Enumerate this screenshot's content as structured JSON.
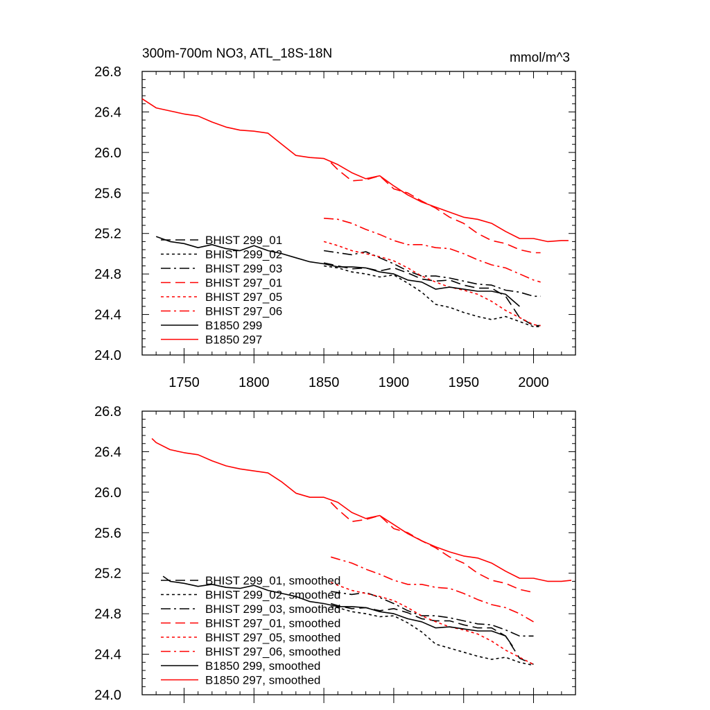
{
  "chart_data": [
    {
      "type": "line",
      "title": "300m-700m NO3, ATL_18S-18N",
      "units": "mmol/m^3",
      "xlabel": "",
      "ylabel": "",
      "xlim": [
        1720,
        2030
      ],
      "ylim": [
        24.0,
        26.8
      ],
      "xticks": [
        1750,
        1800,
        1850,
        1900,
        1950,
        2000
      ],
      "yticks": [
        24.0,
        24.4,
        24.8,
        25.2,
        25.6,
        26.0,
        26.4,
        26.8
      ],
      "ytick_labels": [
        "24.0",
        "24.4",
        "24.8",
        "25.2",
        "25.6",
        "26.0",
        "26.4",
        "26.8"
      ],
      "legend_position": "lower-left",
      "series": [
        {
          "name": "BHIST 299_01",
          "color": "#000000",
          "dash": "dashed",
          "x": [
            1850,
            1860,
            1870,
            1880,
            1890,
            1900,
            1910,
            1920,
            1930,
            1940,
            1950,
            1960,
            1970,
            1980,
            1990,
            2000,
            2005
          ],
          "y": [
            24.91,
            24.88,
            24.85,
            24.86,
            24.83,
            24.86,
            24.81,
            24.75,
            24.73,
            24.74,
            24.69,
            24.66,
            24.66,
            24.58,
            24.37,
            24.29,
            24.29
          ]
        },
        {
          "name": "BHIST 299_02",
          "color": "#000000",
          "dash": "dotted",
          "x": [
            1850,
            1860,
            1870,
            1880,
            1890,
            1900,
            1910,
            1920,
            1930,
            1940,
            1950,
            1960,
            1970,
            1980,
            1990,
            2000,
            2005
          ],
          "y": [
            24.88,
            24.86,
            24.82,
            24.8,
            24.77,
            24.79,
            24.71,
            24.62,
            24.5,
            24.47,
            24.42,
            24.38,
            24.35,
            24.38,
            24.33,
            24.28,
            24.28
          ]
        },
        {
          "name": "BHIST 299_03",
          "color": "#000000",
          "dash": "dashdot",
          "x": [
            1850,
            1860,
            1870,
            1880,
            1890,
            1900,
            1910,
            1920,
            1930,
            1940,
            1950,
            1960,
            1970,
            1980,
            1990,
            2000,
            2005
          ],
          "y": [
            25.03,
            25.01,
            24.99,
            25.02,
            24.96,
            24.9,
            24.83,
            24.78,
            24.78,
            24.76,
            24.73,
            24.7,
            24.69,
            24.64,
            24.62,
            24.58,
            24.58
          ]
        },
        {
          "name": "BHIST 297_01",
          "color": "#ff0000",
          "dash": "dashed",
          "x": [
            1855,
            1860,
            1870,
            1880,
            1890,
            1900,
            1910,
            1920,
            1930,
            1940,
            1950,
            1960,
            1970,
            1980,
            1990,
            2000,
            2005
          ],
          "y": [
            25.9,
            25.83,
            25.72,
            25.73,
            25.77,
            25.64,
            25.6,
            25.52,
            25.45,
            25.36,
            25.3,
            25.2,
            25.13,
            25.1,
            25.04,
            25.01,
            25.01
          ]
        },
        {
          "name": "BHIST 297_05",
          "color": "#ff0000",
          "dash": "dotted",
          "x": [
            1850,
            1860,
            1870,
            1880,
            1890,
            1900,
            1910,
            1920,
            1930,
            1940,
            1950,
            1960,
            1970,
            1980,
            1990,
            2000,
            2005
          ],
          "y": [
            25.12,
            25.08,
            25.03,
            25.0,
            24.97,
            24.93,
            24.86,
            24.78,
            24.72,
            24.67,
            24.64,
            24.6,
            24.53,
            24.44,
            24.37,
            24.3,
            24.29
          ]
        },
        {
          "name": "BHIST 297_06",
          "color": "#ff0000",
          "dash": "dashdot",
          "x": [
            1850,
            1860,
            1870,
            1880,
            1890,
            1900,
            1910,
            1920,
            1930,
            1940,
            1950,
            1960,
            1970,
            1980,
            1990,
            2000,
            2005
          ],
          "y": [
            25.35,
            25.34,
            25.3,
            25.24,
            25.19,
            25.13,
            25.09,
            25.09,
            25.06,
            25.05,
            25.0,
            24.94,
            24.89,
            24.86,
            24.8,
            24.74,
            24.72
          ]
        },
        {
          "name": "B1850 299",
          "color": "#000000",
          "dash": "solid",
          "x": [
            1730,
            1740,
            1750,
            1760,
            1770,
            1780,
            1790,
            1800,
            1810,
            1820,
            1830,
            1840,
            1850,
            1860,
            1870,
            1880,
            1890,
            1900,
            1910,
            1920,
            1930,
            1940,
            1950,
            1960,
            1970,
            1980,
            1990
          ],
          "y": [
            25.17,
            25.12,
            25.1,
            25.06,
            25.09,
            25.05,
            25.03,
            25.08,
            25.03,
            25.0,
            24.96,
            24.92,
            24.9,
            24.87,
            24.87,
            24.86,
            24.82,
            24.8,
            24.74,
            24.72,
            24.65,
            24.67,
            24.65,
            24.63,
            24.63,
            24.6,
            24.48
          ]
        },
        {
          "name": "B1850 297",
          "color": "#ff0000",
          "dash": "solid",
          "x": [
            1720,
            1730,
            1740,
            1750,
            1760,
            1770,
            1780,
            1790,
            1800,
            1810,
            1820,
            1830,
            1840,
            1850,
            1860,
            1870,
            1880,
            1890,
            1900,
            1910,
            1920,
            1930,
            1940,
            1950,
            1960,
            1970,
            1980,
            1990,
            2000,
            2010,
            2020,
            2025
          ],
          "y": [
            26.53,
            26.44,
            26.41,
            26.38,
            26.36,
            26.3,
            26.25,
            26.22,
            26.21,
            26.19,
            26.08,
            25.97,
            25.95,
            25.94,
            25.88,
            25.8,
            25.74,
            25.77,
            25.67,
            25.58,
            25.51,
            25.46,
            25.41,
            25.36,
            25.34,
            25.3,
            25.22,
            25.15,
            25.15,
            25.12,
            25.13,
            25.13
          ]
        }
      ]
    },
    {
      "type": "line",
      "title": "",
      "xlabel": "",
      "ylabel": "",
      "xlim": [
        1720,
        2030
      ],
      "ylim": [
        24.0,
        26.8
      ],
      "xticks": [
        1750,
        1800,
        1850,
        1900,
        1950,
        2000
      ],
      "yticks": [
        24.0,
        24.4,
        24.8,
        25.2,
        25.6,
        26.0,
        26.4,
        26.8
      ],
      "ytick_labels": [
        "24.0",
        "24.4",
        "24.8",
        "25.2",
        "25.6",
        "26.0",
        "26.4",
        "26.8"
      ],
      "legend_position": "lower-left",
      "series": [
        {
          "name": "BHIST 299_01, smoothed",
          "color": "#000000",
          "dash": "dashed",
          "x": [
            1855,
            1860,
            1870,
            1880,
            1890,
            1900,
            1910,
            1920,
            1930,
            1940,
            1950,
            1960,
            1970,
            1980,
            1990,
            2000
          ],
          "y": [
            24.9,
            24.88,
            24.85,
            24.86,
            24.83,
            24.85,
            24.81,
            24.75,
            24.73,
            24.73,
            24.69,
            24.66,
            24.66,
            24.58,
            24.36,
            24.3
          ]
        },
        {
          "name": "BHIST 299_02, smoothed",
          "color": "#000000",
          "dash": "dotted",
          "x": [
            1855,
            1860,
            1870,
            1880,
            1890,
            1900,
            1910,
            1920,
            1930,
            1940,
            1950,
            1960,
            1970,
            1980,
            1990,
            2000
          ],
          "y": [
            24.87,
            24.86,
            24.82,
            24.8,
            24.77,
            24.78,
            24.71,
            24.62,
            24.5,
            24.46,
            24.42,
            24.38,
            24.35,
            24.37,
            24.32,
            24.29
          ]
        },
        {
          "name": "BHIST 299_03, smoothed",
          "color": "#000000",
          "dash": "dashdot",
          "x": [
            1855,
            1860,
            1870,
            1880,
            1890,
            1900,
            1910,
            1920,
            1930,
            1940,
            1950,
            1960,
            1970,
            1980,
            1990,
            2000
          ],
          "y": [
            25.02,
            25.01,
            24.99,
            25.01,
            24.96,
            24.9,
            24.83,
            24.78,
            24.78,
            24.76,
            24.73,
            24.7,
            24.69,
            24.64,
            24.58,
            24.58
          ]
        },
        {
          "name": "BHIST 297_01, smoothed",
          "color": "#ff0000",
          "dash": "dashed",
          "x": [
            1855,
            1860,
            1870,
            1880,
            1890,
            1900,
            1910,
            1920,
            1930,
            1940,
            1950,
            1960,
            1970,
            1980,
            1990,
            2000
          ],
          "y": [
            25.9,
            25.83,
            25.71,
            25.73,
            25.77,
            25.64,
            25.6,
            25.52,
            25.45,
            25.36,
            25.3,
            25.2,
            25.13,
            25.1,
            25.04,
            25.01
          ]
        },
        {
          "name": "BHIST 297_05, smoothed",
          "color": "#ff0000",
          "dash": "dotted",
          "x": [
            1855,
            1860,
            1870,
            1880,
            1890,
            1900,
            1910,
            1920,
            1930,
            1940,
            1950,
            1960,
            1970,
            1980,
            1990,
            2000
          ],
          "y": [
            25.11,
            25.08,
            25.03,
            25.0,
            24.97,
            24.93,
            24.86,
            24.78,
            24.72,
            24.67,
            24.64,
            24.6,
            24.53,
            24.44,
            24.37,
            24.3
          ]
        },
        {
          "name": "BHIST 297_06, smoothed",
          "color": "#ff0000",
          "dash": "dashdot",
          "x": [
            1855,
            1860,
            1870,
            1880,
            1890,
            1900,
            1910,
            1920,
            1930,
            1940,
            1950,
            1960,
            1970,
            1980,
            1990,
            2000
          ],
          "y": [
            25.36,
            25.34,
            25.3,
            25.24,
            25.19,
            25.13,
            25.09,
            25.09,
            25.06,
            25.05,
            25.0,
            24.94,
            24.89,
            24.86,
            24.8,
            24.72
          ]
        },
        {
          "name": "B1850 299, smoothed",
          "color": "#000000",
          "dash": "solid",
          "x": [
            1735,
            1740,
            1750,
            1760,
            1770,
            1780,
            1790,
            1800,
            1810,
            1820,
            1830,
            1840,
            1850,
            1860,
            1870,
            1880,
            1890,
            1900,
            1910,
            1920,
            1930,
            1940,
            1950,
            1960,
            1970,
            1980,
            1985
          ],
          "y": [
            25.17,
            25.12,
            25.1,
            25.07,
            25.09,
            25.06,
            25.05,
            25.08,
            25.03,
            25.0,
            24.97,
            24.92,
            24.9,
            24.87,
            24.87,
            24.86,
            24.82,
            24.8,
            24.75,
            24.72,
            24.66,
            24.67,
            24.65,
            24.63,
            24.63,
            24.58,
            24.48
          ]
        },
        {
          "name": "B1850 297, smoothed",
          "color": "#ff0000",
          "dash": "solid",
          "x": [
            1727,
            1730,
            1740,
            1750,
            1760,
            1770,
            1780,
            1790,
            1800,
            1810,
            1820,
            1830,
            1840,
            1850,
            1860,
            1870,
            1880,
            1890,
            1900,
            1910,
            1920,
            1930,
            1940,
            1950,
            1960,
            1970,
            1980,
            1990,
            2000,
            2010,
            2020,
            2027
          ],
          "y": [
            26.53,
            26.49,
            26.42,
            26.39,
            26.37,
            26.31,
            26.26,
            26.23,
            26.21,
            26.19,
            26.1,
            25.99,
            25.95,
            25.95,
            25.9,
            25.8,
            25.74,
            25.77,
            25.68,
            25.59,
            25.52,
            25.46,
            25.41,
            25.37,
            25.35,
            25.3,
            25.22,
            25.15,
            25.15,
            25.12,
            25.12,
            25.13
          ]
        }
      ]
    }
  ]
}
